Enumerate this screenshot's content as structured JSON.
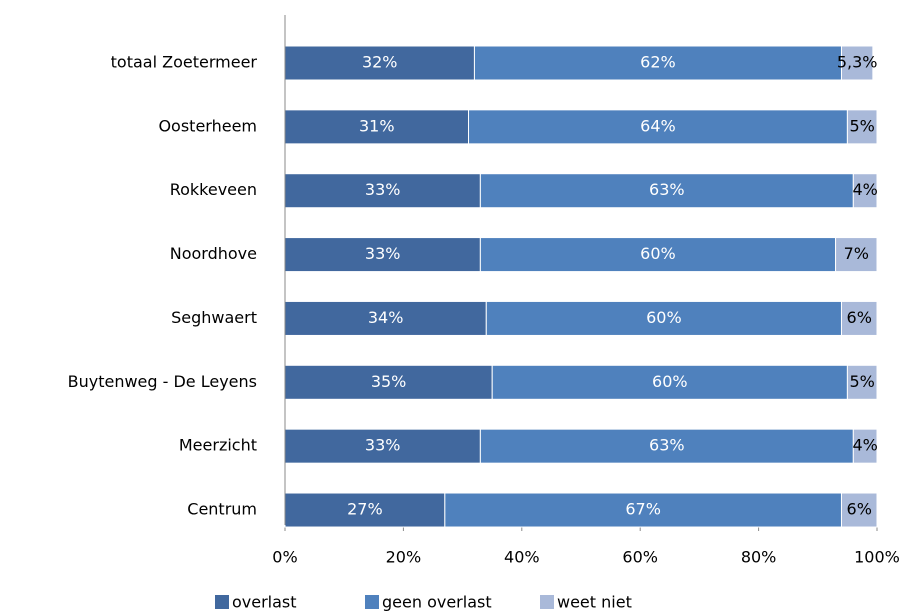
{
  "chart_data": {
    "type": "stacked_bar_horizontal",
    "categories": [
      "totaal Zoetermeer",
      "Oosterheem",
      "Rokkeveen",
      "Noordhove",
      "Seghwaert",
      "Buytenweg - De Leyens",
      "Meerzicht",
      "Centrum"
    ],
    "series": [
      {
        "name": "overlast",
        "color": "#41689e",
        "values": [
          32,
          31,
          33,
          33,
          34,
          35,
          33,
          27
        ],
        "value_labels": [
          "32%",
          "31%",
          "33%",
          "33%",
          "34%",
          "35%",
          "33%",
          "27%"
        ]
      },
      {
        "name": "geen overlast",
        "color": "#4f81bd",
        "values": [
          62,
          64,
          63,
          60,
          60,
          60,
          63,
          67
        ],
        "value_labels": [
          "62%",
          "64%",
          "63%",
          "60%",
          "60%",
          "60%",
          "63%",
          "67%"
        ]
      },
      {
        "name": "weet niet",
        "color": "#a9b9d9",
        "values": [
          5.3,
          5,
          4,
          7,
          6,
          5,
          4,
          6
        ],
        "value_labels": [
          "5,3%",
          "5%",
          "4%",
          "7%",
          "6%",
          "5%",
          "4%",
          "6%"
        ]
      }
    ],
    "xlim": [
      0,
      100
    ],
    "xticks": [
      {
        "value": 0,
        "label": "0%"
      },
      {
        "value": 20,
        "label": "20%"
      },
      {
        "value": 40,
        "label": "40%"
      },
      {
        "value": 60,
        "label": "60%"
      },
      {
        "value": 80,
        "label": "80%"
      },
      {
        "value": 100,
        "label": "100%"
      }
    ],
    "legend": "bottom"
  }
}
